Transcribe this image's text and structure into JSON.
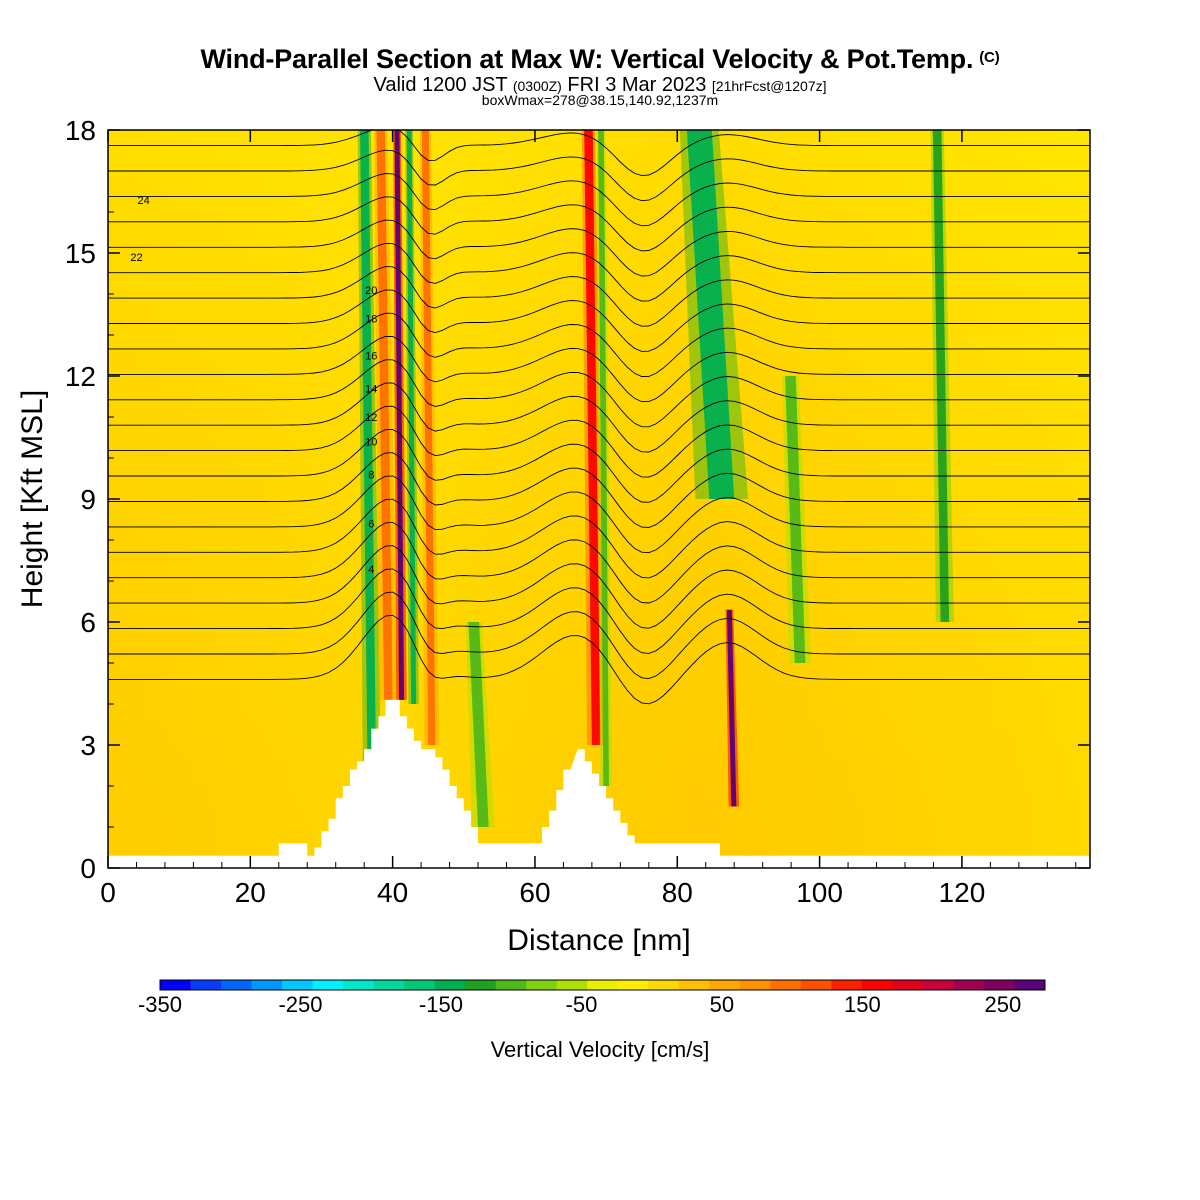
{
  "title": {
    "main": "Wind-Parallel Section at Max W: Vertical Velocity & Pot.Temp.",
    "copyright": "(C)",
    "valid_a": "Valid 1200 JST ",
    "valid_z": "(0300Z)",
    "valid_b": " FRI 3 Mar 2023 ",
    "valid_fcst": "[21hrFcst@1207z]",
    "box": "boxWmax=278@38.15,140.92,1237m"
  },
  "chart_data": {
    "type": "heatmap",
    "xlabel": "Distance [nm]",
    "ylabel": "Height [Kft MSL]",
    "xlim": [
      0,
      138
    ],
    "ylim": [
      0,
      18
    ],
    "x_ticks": [
      0,
      20,
      40,
      60,
      80,
      100,
      120
    ],
    "y_ticks": [
      0,
      3,
      6,
      9,
      12,
      15,
      18
    ],
    "colorbar": {
      "label": "Vertical Velocity [cm/s]",
      "ticks": [
        "-350",
        "-250",
        "-150",
        "-50",
        "50",
        "150",
        "250"
      ],
      "colors": [
        "#0000ff",
        "#0a3cff",
        "#0064ff",
        "#0096ff",
        "#00c8ff",
        "#00f0ff",
        "#00e8c8",
        "#00d8a0",
        "#00c878",
        "#00b050",
        "#20a020",
        "#50b818",
        "#80d010",
        "#b0e000",
        "#e8f000",
        "#ffee00",
        "#ffd800",
        "#ffc000",
        "#ffa800",
        "#ff9000",
        "#ff7000",
        "#ff5000",
        "#ff2000",
        "#ff0000",
        "#e0001e",
        "#c8003c",
        "#a00050",
        "#800060",
        "#5a0078"
      ]
    },
    "isotherm_labels": [
      "24",
      "22",
      "20",
      "18",
      "16",
      "14",
      "12",
      "10",
      "8",
      "6",
      "4"
    ],
    "vertical_velocity_columns": [
      {
        "x": 36.5,
        "w": 1.2,
        "z0": 2.0,
        "z1": 18,
        "value": -150
      },
      {
        "x": 38.8,
        "w": 1.2,
        "z0": 4.1,
        "z1": 18,
        "value": 100
      },
      {
        "x": 40.9,
        "w": 0.7,
        "z0": 4.1,
        "z1": 18,
        "value": 278
      },
      {
        "x": 42.6,
        "w": 0.7,
        "z0": 4.0,
        "z1": 18,
        "value": -150
      },
      {
        "x": 45.0,
        "w": 1.0,
        "z0": 3.0,
        "z1": 18,
        "value": 100
      },
      {
        "x": 52.0,
        "w": 1.5,
        "z0": 1.0,
        "z1": 6,
        "value": -100
      },
      {
        "x": 68.0,
        "w": 1.2,
        "z0": 3.0,
        "z1": 18,
        "value": 150
      },
      {
        "x": 69.6,
        "w": 0.8,
        "z0": 2.0,
        "z1": 18,
        "value": -100
      },
      {
        "x": 84.5,
        "w": 3.5,
        "z0": 9,
        "z1": 18,
        "value": -150
      },
      {
        "x": 87.6,
        "w": 0.7,
        "z0": 1.5,
        "z1": 6.3,
        "value": 278
      },
      {
        "x": 96.5,
        "w": 1.5,
        "z0": 5,
        "z1": 12,
        "value": -100
      },
      {
        "x": 117,
        "w": 1.2,
        "z0": 6,
        "z1": 18,
        "value": -120
      }
    ],
    "terrain": {
      "x": [
        0,
        24,
        24,
        28,
        28,
        29,
        29,
        30,
        30,
        31,
        31,
        32,
        32,
        33,
        33,
        34,
        34,
        35,
        35,
        36,
        36,
        37,
        37,
        38,
        38,
        39,
        39,
        40,
        41,
        41,
        42,
        42,
        43,
        43,
        44,
        44,
        45,
        46,
        46,
        47,
        47,
        48,
        48,
        49,
        49,
        50,
        50,
        51,
        51,
        52,
        52,
        53,
        54,
        55,
        56,
        57,
        58,
        59,
        60,
        61,
        61,
        62,
        62,
        63,
        63,
        64,
        64,
        65,
        66,
        67,
        67,
        68,
        68,
        69,
        69,
        70,
        70,
        71,
        71,
        72,
        72,
        73,
        73,
        74,
        74,
        75,
        76,
        77,
        78,
        79,
        80,
        81,
        82,
        83,
        84,
        85,
        86,
        86,
        87,
        87,
        88,
        89,
        90,
        91,
        92,
        93,
        94,
        95,
        96,
        97,
        98,
        99,
        100,
        101,
        102,
        103,
        104,
        105,
        106,
        107,
        108,
        109,
        110,
        111,
        112,
        113,
        114,
        115,
        116,
        117,
        118,
        119,
        120,
        121,
        122,
        123,
        124,
        125,
        126,
        127,
        128,
        129,
        130,
        131,
        132,
        133,
        134,
        135,
        136,
        137,
        138
      ],
      "z": [
        0.3,
        0.3,
        0.6,
        0.6,
        0.3,
        0.3,
        0.5,
        0.5,
        0.9,
        0.9,
        1.2,
        1.2,
        1.7,
        1.7,
        2.0,
        2.0,
        2.4,
        2.4,
        2.6,
        2.6,
        2.9,
        2.9,
        3.4,
        3.4,
        3.7,
        3.7,
        4.1,
        4.1,
        4.1,
        3.7,
        3.7,
        3.4,
        3.4,
        3.1,
        3.1,
        2.9,
        2.9,
        2.9,
        2.7,
        2.7,
        2.4,
        2.4,
        2.0,
        2.0,
        1.7,
        1.7,
        1.4,
        1.4,
        1.0,
        1.0,
        0.6,
        0.6,
        0.6,
        0.6,
        0.6,
        0.6,
        0.6,
        0.6,
        0.6,
        0.6,
        1.0,
        1.0,
        1.4,
        1.4,
        1.9,
        1.9,
        2.4,
        2.4,
        2.9,
        2.9,
        2.6,
        2.6,
        2.3,
        2.3,
        2.0,
        2.0,
        1.7,
        1.7,
        1.4,
        1.4,
        1.1,
        1.1,
        0.8,
        0.8,
        0.6,
        0.6,
        0.6,
        0.6,
        0.6,
        0.6,
        0.6,
        0.6,
        0.6,
        0.6,
        0.6,
        0.6,
        0.6,
        0.3,
        0.3,
        0.3,
        0.3,
        0.3,
        0.3,
        0.3,
        0.3,
        0.3,
        0.3,
        0.3,
        0.3,
        0.3,
        0.3,
        0.3,
        0.3,
        0.3,
        0.3,
        0.3,
        0.3,
        0.3,
        0.3,
        0.3,
        0.3,
        0.3,
        0.3,
        0.3,
        0.3,
        0.3,
        0.3,
        0.3,
        0.3,
        0.3,
        0.3,
        0.3,
        0.3,
        0.3,
        0.3,
        0.3,
        0.3,
        0.3,
        0.3,
        0.3,
        0.3,
        0.3,
        0.3,
        0.3,
        0.3,
        0.3,
        0.3,
        0.3,
        0.3,
        0.3,
        0.3
      ]
    }
  }
}
